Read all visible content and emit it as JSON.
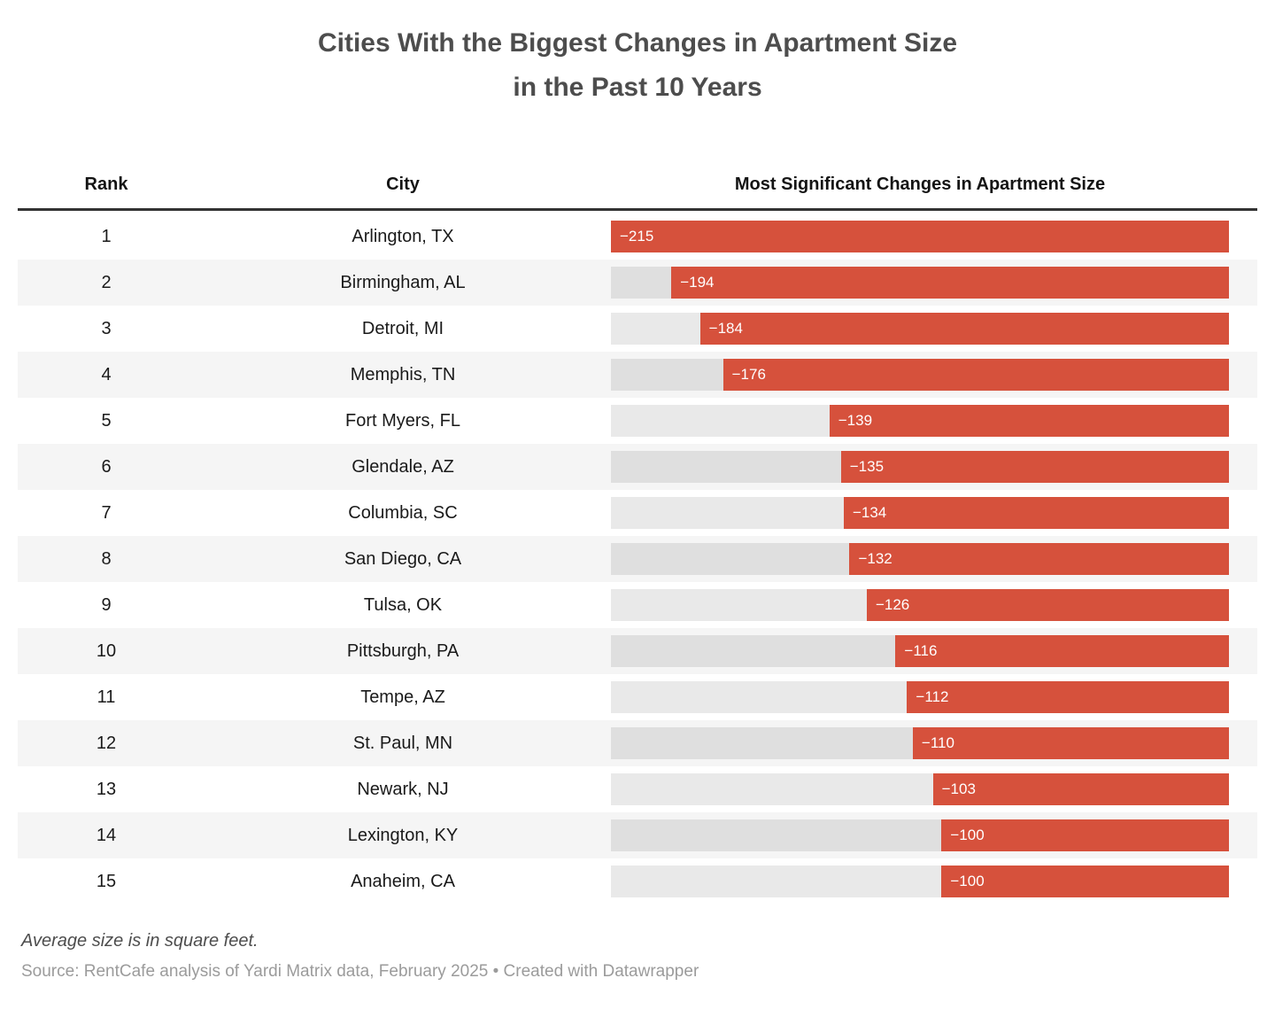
{
  "title": {
    "line1": "Cities With the Biggest Changes in Apartment Size",
    "line2": "in the Past 10 Years"
  },
  "table": {
    "headers": {
      "rank": "Rank",
      "city": "City",
      "change": "Most Significant Changes in Apartment Size"
    },
    "rows": [
      {
        "rank": "1",
        "city": "Arlington, TX",
        "value": -215,
        "label": "−215"
      },
      {
        "rank": "2",
        "city": "Birmingham, AL",
        "value": -194,
        "label": "−194"
      },
      {
        "rank": "3",
        "city": "Detroit, MI",
        "value": -184,
        "label": "−184"
      },
      {
        "rank": "4",
        "city": "Memphis, TN",
        "value": -176,
        "label": "−176"
      },
      {
        "rank": "5",
        "city": "Fort Myers, FL",
        "value": -139,
        "label": "−139"
      },
      {
        "rank": "6",
        "city": "Glendale, AZ",
        "value": -135,
        "label": "−135"
      },
      {
        "rank": "7",
        "city": "Columbia, SC",
        "value": -134,
        "label": "−134"
      },
      {
        "rank": "8",
        "city": "San Diego, CA",
        "value": -132,
        "label": "−132"
      },
      {
        "rank": "9",
        "city": "Tulsa, OK",
        "value": -126,
        "label": "−126"
      },
      {
        "rank": "10",
        "city": "Pittsburgh, PA",
        "value": -116,
        "label": "−116"
      },
      {
        "rank": "11",
        "city": "Tempe, AZ",
        "value": -112,
        "label": "−112"
      },
      {
        "rank": "12",
        "city": "St. Paul, MN",
        "value": -110,
        "label": "−110"
      },
      {
        "rank": "13",
        "city": "Newark, NJ",
        "value": -103,
        "label": "−103"
      },
      {
        "rank": "14",
        "city": "Lexington, KY",
        "value": -100,
        "label": "−100"
      },
      {
        "rank": "15",
        "city": "Anaheim, CA",
        "value": -100,
        "label": "−100"
      }
    ]
  },
  "footer": {
    "note": "Average size is in square feet.",
    "source": "Source: RentCafe analysis of Yardi Matrix data, February 2025 • Created with Datawrapper"
  },
  "colors": {
    "bar_fill": "#d6513c",
    "bar_track": "rgba(0,0,0,0.085)",
    "row_stripe": "#f5f5f5",
    "header_border": "#333333",
    "title_text": "#4d4d4d"
  },
  "chart_data": {
    "type": "bar",
    "orientation": "horizontal",
    "title": "Cities With the Biggest Changes in Apartment Size in the Past 10 Years",
    "categories": [
      "Arlington, TX",
      "Birmingham, AL",
      "Detroit, MI",
      "Memphis, TN",
      "Fort Myers, FL",
      "Glendale, AZ",
      "Columbia, SC",
      "San Diego, CA",
      "Tulsa, OK",
      "Pittsburgh, PA",
      "Tempe, AZ",
      "St. Paul, MN",
      "Newark, NJ",
      "Lexington, KY",
      "Anaheim, CA"
    ],
    "values": [
      -215,
      -194,
      -184,
      -176,
      -139,
      -135,
      -134,
      -132,
      -126,
      -116,
      -112,
      -110,
      -103,
      -100,
      -100
    ],
    "series_label": "Most Significant Changes in Apartment Size",
    "value_unit": "square feet",
    "axis_max_magnitude": 215,
    "bars_right_aligned": true,
    "grid": false,
    "legend": false,
    "note": "Average size is in square feet.",
    "source": "Source: RentCafe analysis of Yardi Matrix data, February 2025 • Created with Datawrapper"
  }
}
